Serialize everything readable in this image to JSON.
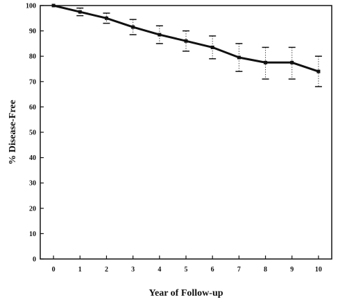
{
  "chart_data": {
    "type": "line",
    "title": "",
    "xlabel": "Year of Follow-up",
    "ylabel": "% Disease-Free",
    "x": [
      0,
      1,
      2,
      3,
      4,
      5,
      6,
      7,
      8,
      9,
      10
    ],
    "series": [
      {
        "values": [
          100,
          97.5,
          95,
          91.5,
          88.5,
          86,
          83.5,
          79.5,
          77.5,
          77.5,
          74
        ],
        "err_low": [
          100,
          96,
          93,
          88.5,
          85,
          82,
          79,
          74,
          71,
          71,
          68
        ],
        "err_high": [
          100,
          99,
          97,
          94.5,
          92,
          90,
          88,
          85,
          83.5,
          83.5,
          80
        ]
      }
    ],
    "xlim": [
      -0.5,
      10.5
    ],
    "ylim": [
      0,
      100
    ],
    "yticks": [
      0,
      10,
      20,
      30,
      40,
      50,
      60,
      70,
      80,
      90,
      100
    ],
    "xticks": [
      0,
      1,
      2,
      3,
      4,
      5,
      6,
      7,
      8,
      9,
      10
    ],
    "grid": false,
    "line_color": "#111111"
  }
}
